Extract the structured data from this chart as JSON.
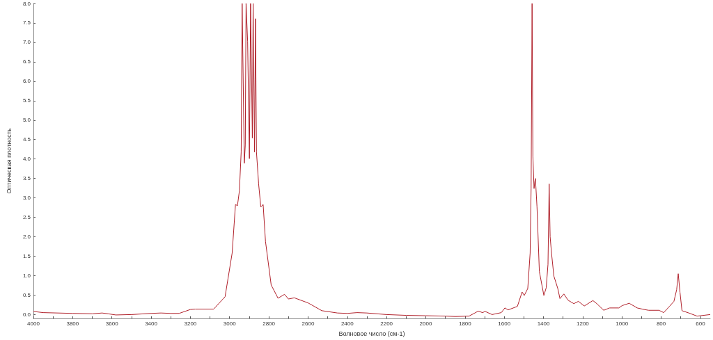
{
  "chart_data": {
    "type": "line",
    "xlabel": "Волновое число (см-1)",
    "ylabel": "Оптическая плотность",
    "xlim": [
      4000,
      550
    ],
    "ylim": [
      -0.1,
      8
    ],
    "xticks": [
      4000,
      {
        "value": 3900,
        "label": null
      },
      3800,
      {
        "value": 3700,
        "label": null
      },
      3600,
      {
        "value": 3500,
        "label": null
      },
      3400,
      {
        "value": 3300,
        "label": null
      },
      3200,
      {
        "value": 3100,
        "label": null
      },
      3000,
      {
        "value": 2900,
        "label": null
      },
      2800,
      {
        "value": 2700,
        "label": null
      },
      2600,
      {
        "value": 2500,
        "label": null
      },
      2400,
      {
        "value": 2300,
        "label": null
      },
      2200,
      {
        "value": 2100,
        "label": null
      },
      2000,
      {
        "value": 1900,
        "label": null
      },
      1800,
      {
        "value": 1700,
        "label": null
      },
      1600,
      {
        "value": 1500,
        "label": null
      },
      1400,
      {
        "value": 1300,
        "label": null
      },
      1200,
      {
        "value": 1100,
        "label": null
      },
      1000,
      {
        "value": 900,
        "label": null
      },
      800,
      {
        "value": 700,
        "label": null
      },
      600
    ],
    "yticks": [
      {
        "value": 0,
        "label": "0.0"
      },
      0.5,
      {
        "value": 1,
        "label": "1.0"
      },
      1.5,
      {
        "value": 2,
        "label": "2.0"
      },
      2.5,
      {
        "value": 3,
        "label": "3.0"
      },
      3.5,
      {
        "value": 4,
        "label": "4.0"
      },
      4.5,
      {
        "value": 5,
        "label": "5.0"
      },
      5.5,
      {
        "value": 6,
        "label": "6.0"
      },
      6.5,
      {
        "value": 7,
        "label": "7.0"
      },
      7.5,
      {
        "value": 8,
        "label": "8.0"
      }
    ],
    "grid": false,
    "marker": "none",
    "line_style": "solid",
    "series": [
      {
        "color": "#b0202a",
        "x": [
          4000,
          3950,
          3800,
          3700,
          3650,
          3620,
          3580,
          3500,
          3400,
          3350,
          3300,
          3257,
          3200,
          3175,
          3081,
          3023,
          2987,
          2970,
          2960,
          2950,
          2941,
          2936,
          2925,
          2920,
          2916,
          2908,
          2899,
          2893,
          2884,
          2880,
          2873,
          2868,
          2863,
          2852,
          2841,
          2829,
          2817,
          2788,
          2753,
          2720,
          2700,
          2670,
          2600,
          2530,
          2450,
          2400,
          2350,
          2300,
          2200,
          2100,
          2000,
          1900,
          1849,
          1779,
          1732,
          1711,
          1697,
          1662,
          1615,
          1597,
          1580,
          1533,
          1509,
          1498,
          1480,
          1468,
          1463,
          1458,
          1454,
          1448,
          1444,
          1441,
          1433,
          1421,
          1398,
          1386,
          1377,
          1371,
          1366,
          1359,
          1347,
          1327,
          1316,
          1296,
          1275,
          1245,
          1222,
          1192,
          1148,
          1128,
          1093,
          1063,
          1016,
          999,
          963,
          922,
          887,
          864,
          811,
          787,
          758,
          735,
          721,
          713,
          704,
          694,
          659,
          617,
          550
        ],
        "values": [
          0.08,
          0.05,
          0.03,
          0.02,
          0.04,
          0.02,
          -0.01,
          0.0,
          0.03,
          0.04,
          0.03,
          0.03,
          0.13,
          0.14,
          0.14,
          0.46,
          1.58,
          2.83,
          2.8,
          3.18,
          4.18,
          8,
          3.89,
          4.36,
          8,
          7.02,
          4.01,
          8,
          4.54,
          8,
          4.18,
          7.61,
          4.18,
          3.36,
          2.77,
          2.83,
          1.88,
          0.76,
          0.42,
          0.52,
          0.4,
          0.43,
          0.3,
          0.1,
          0.04,
          0.03,
          0.05,
          0.04,
          0.0,
          -0.02,
          -0.03,
          -0.04,
          -0.05,
          -0.04,
          0.09,
          0.05,
          0.08,
          0.0,
          0.05,
          0.17,
          0.12,
          0.21,
          0.58,
          0.49,
          0.67,
          1.58,
          3.24,
          8,
          4.07,
          3.24,
          3.42,
          3.5,
          2.77,
          1.11,
          0.49,
          0.69,
          1.29,
          3.36,
          2.0,
          1.58,
          0.99,
          0.67,
          0.41,
          0.53,
          0.37,
          0.28,
          0.34,
          0.22,
          0.36,
          0.28,
          0.11,
          0.17,
          0.17,
          0.23,
          0.29,
          0.17,
          0.13,
          0.11,
          0.11,
          0.05,
          0.21,
          0.34,
          0.64,
          1.05,
          0.57,
          0.1,
          0.04,
          -0.04,
          0.0
        ]
      }
    ]
  }
}
